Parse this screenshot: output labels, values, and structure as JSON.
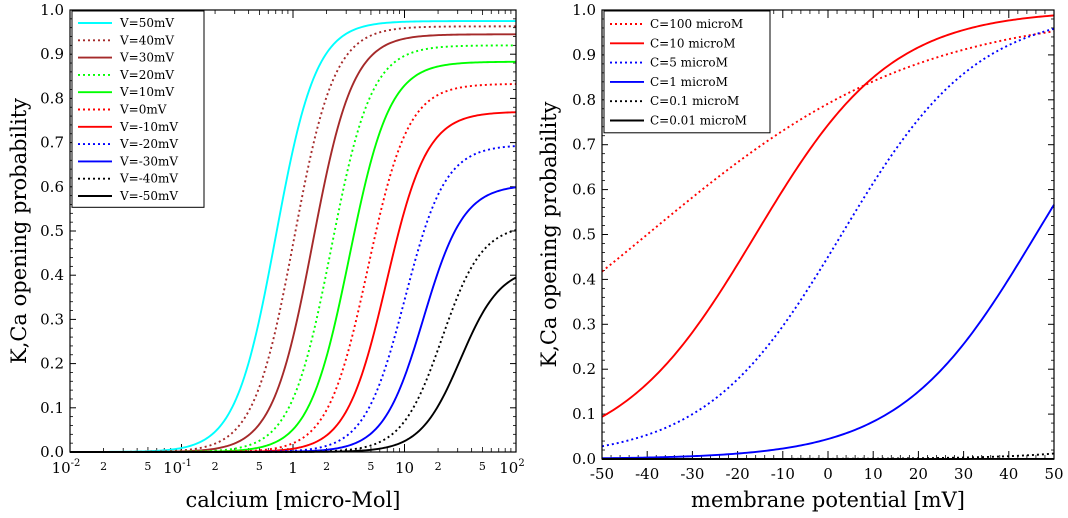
{
  "chart_data": [
    {
      "type": "line",
      "xlabel": "calcium [micro-Mol]",
      "ylabel": "K,Ca opening probability",
      "xscale": "log",
      "xlim": [
        0.01,
        100
      ],
      "ylim": [
        0,
        1
      ],
      "yticks": [
        "0.0",
        "0.1",
        "0.2",
        "0.3",
        "0.4",
        "0.5",
        "0.6",
        "0.7",
        "0.8",
        "0.9",
        "1.0"
      ],
      "xticks_major": [
        {
          "base": "10",
          "exp": "-2"
        },
        {
          "base": "10",
          "exp": "-1"
        },
        {
          "base": "1",
          "exp": ""
        },
        {
          "base": "10",
          "exp": ""
        },
        {
          "base": "10",
          "exp": "2"
        }
      ],
      "xticks_minor_labels": [
        "2",
        "5",
        "2",
        "5",
        "2",
        "5",
        "2",
        "5"
      ],
      "legend_position": "top-left",
      "series": [
        {
          "name": "V=50mV",
          "color": "#00ffff",
          "dash": "solid",
          "params": {
            "pmax": 0.975,
            "k": 0.7,
            "n": 2.4
          }
        },
        {
          "name": "V=40mV",
          "color": "#a52a2a",
          "dash": "dot",
          "params": {
            "pmax": 0.963,
            "k": 1.02,
            "n": 2.4
          }
        },
        {
          "name": "V=30mV",
          "color": "#a52a2a",
          "dash": "solid",
          "params": {
            "pmax": 0.945,
            "k": 1.5,
            "n": 2.4
          }
        },
        {
          "name": "V=20mV",
          "color": "#00ff00",
          "dash": "dot",
          "params": {
            "pmax": 0.92,
            "k": 2.2,
            "n": 2.4
          }
        },
        {
          "name": "V=10mV",
          "color": "#00ff00",
          "dash": "solid",
          "params": {
            "pmax": 0.883,
            "k": 3.2,
            "n": 2.4
          }
        },
        {
          "name": "V=0mV",
          "color": "#ff0000",
          "dash": "dot",
          "params": {
            "pmax": 0.833,
            "k": 4.7,
            "n": 2.4
          }
        },
        {
          "name": "V=-10mV",
          "color": "#ff0000",
          "dash": "solid",
          "params": {
            "pmax": 0.77,
            "k": 6.9,
            "n": 2.4
          }
        },
        {
          "name": "V=-20mV",
          "color": "#0000ff",
          "dash": "dot",
          "params": {
            "pmax": 0.695,
            "k": 10.1,
            "n": 2.4
          }
        },
        {
          "name": "V=-30mV",
          "color": "#0000ff",
          "dash": "solid",
          "params": {
            "pmax": 0.605,
            "k": 14.8,
            "n": 2.4
          }
        },
        {
          "name": "V=-40mV",
          "color": "#000000",
          "dash": "dot",
          "params": {
            "pmax": 0.515,
            "k": 21.7,
            "n": 2.4
          }
        },
        {
          "name": "V=-50mV",
          "color": "#000000",
          "dash": "solid",
          "params": {
            "pmax": 0.42,
            "k": 31.8,
            "n": 2.4
          }
        }
      ]
    },
    {
      "type": "line",
      "xlabel": "membrane potential [mV]",
      "ylabel": "K,Ca opening probability",
      "xlim": [
        -50,
        50
      ],
      "ylim": [
        0,
        1
      ],
      "yticks": [
        "0.0",
        "0.1",
        "0.2",
        "0.3",
        "0.4",
        "0.5",
        "0.6",
        "0.7",
        "0.8",
        "0.9",
        "1.0"
      ],
      "xticks": [
        "-50",
        "-40",
        "-30",
        "-20",
        "-10",
        "0",
        "10",
        "20",
        "30",
        "40",
        "50"
      ],
      "legend_position": "top-left",
      "series": [
        {
          "name": "C=100 microM",
          "color": "#ff0000",
          "dash": "dot",
          "params": {
            "v0": -40,
            "s": 30
          }
        },
        {
          "name": "C=10 microM",
          "color": "#ff0000",
          "dash": "solid",
          "params": {
            "v0": -16,
            "s": 15
          }
        },
        {
          "name": "C=5 microM",
          "color": "#0000ff",
          "dash": "dot",
          "params": {
            "v0": 3,
            "s": 15
          }
        },
        {
          "name": "C=1 microM",
          "color": "#0000ff",
          "dash": "solid",
          "params": {
            "v0": 46,
            "s": 15
          }
        },
        {
          "name": "C=0.1 microM",
          "color": "#000000",
          "dash": "dot",
          "params": {
            "v0": 116,
            "s": 15
          }
        },
        {
          "name": "C=0.01 microM",
          "color": "#000000",
          "dash": "solid",
          "params": {
            "v0": 186,
            "s": 15
          }
        }
      ]
    }
  ]
}
